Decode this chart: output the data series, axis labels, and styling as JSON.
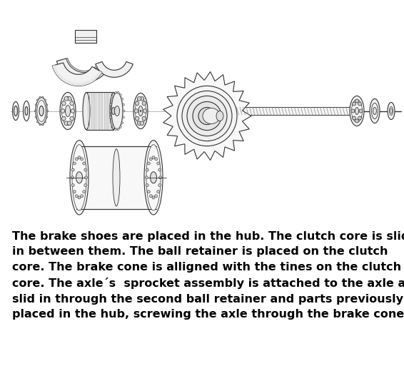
{
  "background_color": "#ffffff",
  "text_color": "#000000",
  "line_color": "#333333",
  "text_block": "The brake shoes are placed in the hub. The clutch core is slid\nin between them. The ball retainer is placed on the clutch\ncore. The brake cone is alligned with the tines on the clutch\ncore. The axle´s  sprocket assembly is attached to the axle and\nslid in through the second ball retainer and parts previously\nplaced in the hub, screwing the axle through the brake cone.",
  "text_fontsize": 11.5,
  "fig_width": 5.66,
  "fig_height": 5.34,
  "dpi": 100
}
